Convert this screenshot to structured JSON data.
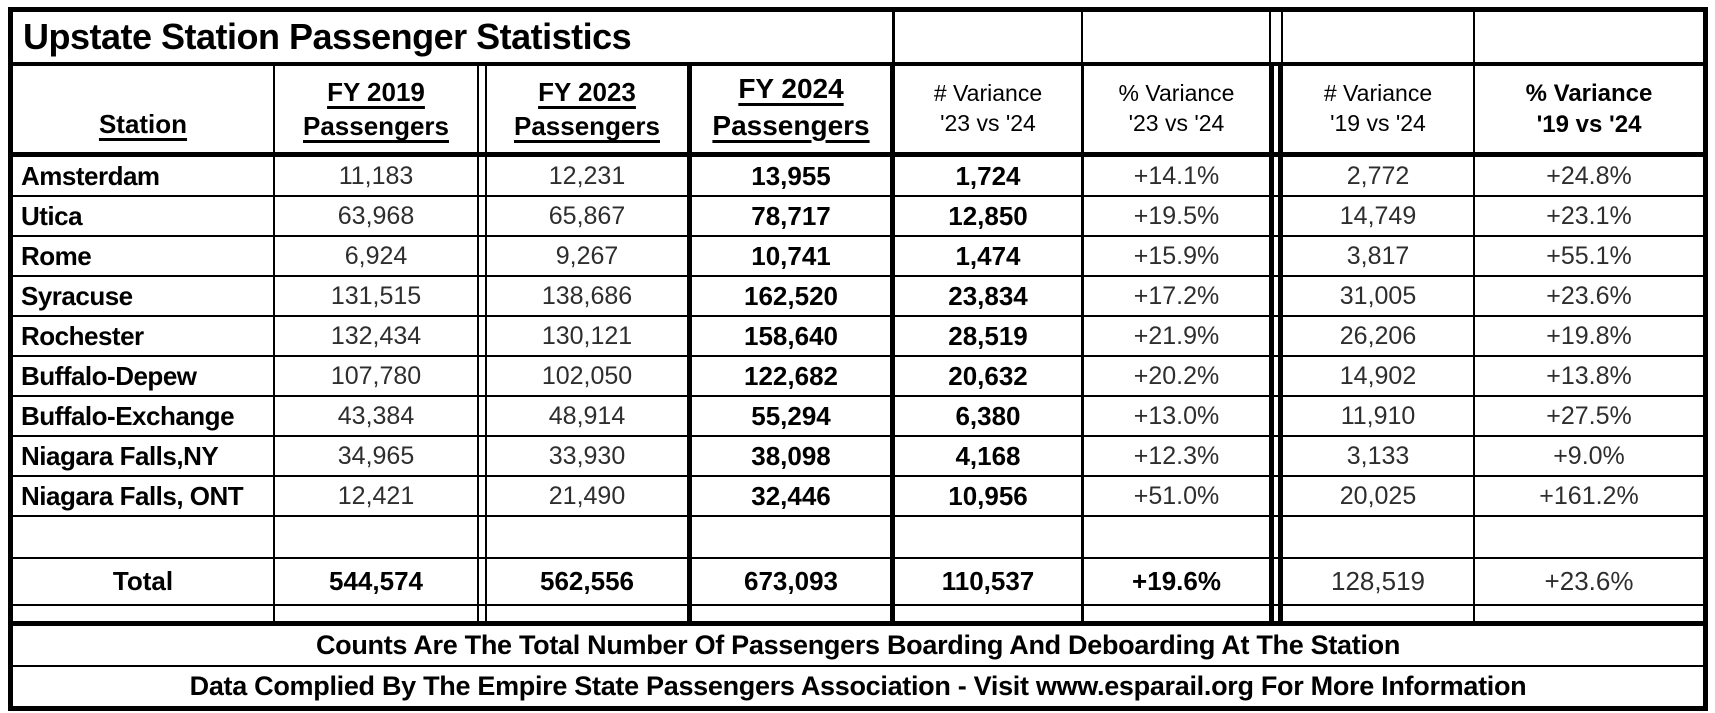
{
  "title": "Upstate Station Passenger Statistics",
  "table": {
    "headers": {
      "station": "Station",
      "fy2019": "FY 2019\nPassengers",
      "fy2023": "FY 2023\nPassengers",
      "fy2024": "FY 2024\nPassengers",
      "var_num_23_24": "# Variance\n'23 vs '24",
      "var_pct_23_24": "% Variance\n'23 vs '24",
      "var_num_19_24": "# Variance\n'19 vs '24",
      "var_pct_19_24": "% Variance\n'19 vs '24"
    },
    "rows": [
      {
        "station": "Amsterdam",
        "fy2019": "11,183",
        "fy2023": "12,231",
        "fy2024": "13,955",
        "var_num_23_24": "1,724",
        "var_pct_23_24": "+14.1%",
        "var_num_19_24": "2,772",
        "var_pct_19_24": "+24.8%"
      },
      {
        "station": "Utica",
        "fy2019": "63,968",
        "fy2023": "65,867",
        "fy2024": "78,717",
        "var_num_23_24": "12,850",
        "var_pct_23_24": "+19.5%",
        "var_num_19_24": "14,749",
        "var_pct_19_24": "+23.1%"
      },
      {
        "station": "Rome",
        "fy2019": "6,924",
        "fy2023": "9,267",
        "fy2024": "10,741",
        "var_num_23_24": "1,474",
        "var_pct_23_24": "+15.9%",
        "var_num_19_24": "3,817",
        "var_pct_19_24": "+55.1%"
      },
      {
        "station": "Syracuse",
        "fy2019": "131,515",
        "fy2023": "138,686",
        "fy2024": "162,520",
        "var_num_23_24": "23,834",
        "var_pct_23_24": "+17.2%",
        "var_num_19_24": "31,005",
        "var_pct_19_24": "+23.6%"
      },
      {
        "station": "Rochester",
        "fy2019": "132,434",
        "fy2023": "130,121",
        "fy2024": "158,640",
        "var_num_23_24": "28,519",
        "var_pct_23_24": "+21.9%",
        "var_num_19_24": "26,206",
        "var_pct_19_24": "+19.8%"
      },
      {
        "station": "Buffalo-Depew",
        "fy2019": "107,780",
        "fy2023": "102,050",
        "fy2024": "122,682",
        "var_num_23_24": "20,632",
        "var_pct_23_24": "+20.2%",
        "var_num_19_24": "14,902",
        "var_pct_19_24": "+13.8%"
      },
      {
        "station": "Buffalo-Exchange",
        "fy2019": "43,384",
        "fy2023": "48,914",
        "fy2024": "55,294",
        "var_num_23_24": "6,380",
        "var_pct_23_24": "+13.0%",
        "var_num_19_24": "11,910",
        "var_pct_19_24": "+27.5%"
      },
      {
        "station": "Niagara Falls,NY",
        "fy2019": "34,965",
        "fy2023": "33,930",
        "fy2024": "38,098",
        "var_num_23_24": "4,168",
        "var_pct_23_24": "+12.3%",
        "var_num_19_24": "3,133",
        "var_pct_19_24": "+9.0%"
      },
      {
        "station": "Niagara Falls, ONT",
        "fy2019": "12,421",
        "fy2023": "21,490",
        "fy2024": "32,446",
        "var_num_23_24": "10,956",
        "var_pct_23_24": "+51.0%",
        "var_num_19_24": "20,025",
        "var_pct_19_24": "+161.2%"
      }
    ],
    "total": {
      "station": "Total",
      "fy2019": "544,574",
      "fy2023": "562,556",
      "fy2024": "673,093",
      "var_num_23_24": "110,537",
      "var_pct_23_24": "+19.6%",
      "var_num_19_24": "128,519",
      "var_pct_19_24": "+23.6%"
    }
  },
  "footnotes": {
    "line1": "Counts Are The Total Number Of Passengers Boarding And Deboarding At The Station",
    "line2": "Data Complied By The Empire State Passengers Association - Visit www.esparail.org For More Information"
  },
  "colors": {
    "border": "#000000",
    "background": "#ffffff",
    "text": "#000000"
  }
}
